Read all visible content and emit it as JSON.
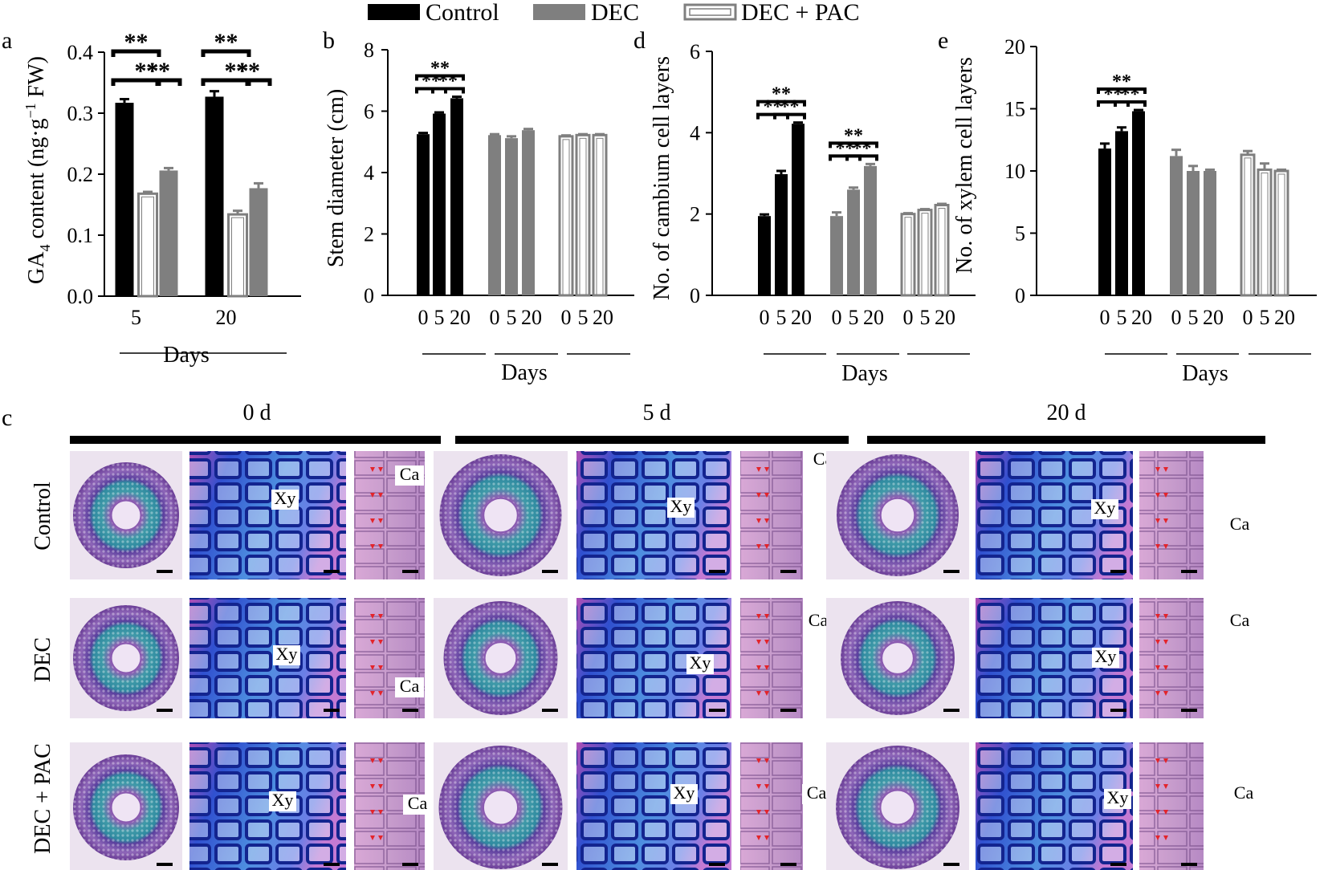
{
  "legend": [
    {
      "label": "Control",
      "color": "#000000",
      "style": "solid"
    },
    {
      "label": "DEC",
      "color": "#7f7f7f",
      "style": "solid"
    },
    {
      "label": "DEC + PAC",
      "color": "#ffffff",
      "style": "outline"
    }
  ],
  "panels": {
    "a": {
      "letter": "a",
      "ylabel_main": "GA",
      "ylabel_sub": "4",
      "ylabel_rest": " content (ng·g",
      "ylabel_sup": "−1",
      "ylabel_end": " FW)",
      "xlabel": "Days"
    },
    "b": {
      "letter": "b",
      "ylabel": "Stem diameter (cm)",
      "xlabel": "Days"
    },
    "d": {
      "letter": "d",
      "ylabel": "No. of cambium cell layers",
      "xlabel": "Days"
    },
    "e": {
      "letter": "e",
      "ylabel": "No. of xylem cell layers",
      "xlabel": "Days"
    },
    "c": {
      "letter": "c"
    }
  },
  "sig_label": "**",
  "chart_data": [
    {
      "panel": "a",
      "type": "bar",
      "categories": [
        "5",
        "20"
      ],
      "series": [
        {
          "name": "Control",
          "values": [
            0.317,
            0.327
          ],
          "errors": [
            0.006,
            0.009
          ]
        },
        {
          "name": "DEC",
          "values": [
            0.206,
            0.177
          ],
          "errors": [
            0.004,
            0.008
          ]
        },
        {
          "name": "DEC + PAC",
          "values": [
            0.168,
            0.134
          ],
          "errors": [
            0.003,
            0.006
          ]
        }
      ],
      "ylim": [
        0,
        0.4
      ],
      "yticks": [
        "0.0",
        "0.1",
        "0.2",
        "0.3",
        "0.4"
      ],
      "significance": [
        {
          "group": 0,
          "from": 0,
          "to": 1,
          "label": "**"
        },
        {
          "group": 0,
          "from": 1,
          "to": 2,
          "label": "**"
        },
        {
          "group": 0,
          "from": 0,
          "to": 2,
          "label": "**"
        },
        {
          "group": 1,
          "from": 0,
          "to": 1,
          "label": "**"
        },
        {
          "group": 1,
          "from": 1,
          "to": 2,
          "label": "**"
        },
        {
          "group": 1,
          "from": 0,
          "to": 2,
          "label": "**"
        }
      ]
    },
    {
      "panel": "b",
      "type": "bar",
      "groups": [
        {
          "name": "Control",
          "x": [
            "0",
            "5",
            "20"
          ],
          "values": [
            5.25,
            5.92,
            6.42
          ],
          "errors": [
            0.04,
            0.04,
            0.05
          ]
        },
        {
          "name": "DEC",
          "x": [
            "0",
            "5",
            "20"
          ],
          "values": [
            5.22,
            5.12,
            5.38
          ],
          "errors": [
            0.03,
            0.06,
            0.04
          ]
        },
        {
          "name": "DEC + PAC",
          "x": [
            "0",
            "5",
            "20"
          ],
          "values": [
            5.18,
            5.22,
            5.22
          ],
          "errors": [
            0.03,
            0.03,
            0.03
          ]
        }
      ],
      "ylim": [
        0,
        8
      ],
      "yticks": [
        "0",
        "2",
        "4",
        "6",
        "8"
      ],
      "significance": [
        {
          "group": 0,
          "from": 0,
          "to": 1,
          "label": "**"
        },
        {
          "group": 0,
          "from": 1,
          "to": 2,
          "label": "**"
        },
        {
          "group": 0,
          "from": 0,
          "to": 2,
          "label": "**"
        }
      ]
    },
    {
      "panel": "d",
      "type": "bar",
      "groups": [
        {
          "name": "Control",
          "x": [
            "0",
            "5",
            "20"
          ],
          "values": [
            1.95,
            2.98,
            4.22
          ],
          "errors": [
            0.04,
            0.08,
            0.03
          ]
        },
        {
          "name": "DEC",
          "x": [
            "0",
            "5",
            "20"
          ],
          "values": [
            1.95,
            2.6,
            3.18
          ],
          "errors": [
            0.09,
            0.05,
            0.05
          ]
        },
        {
          "name": "DEC + PAC",
          "x": [
            "0",
            "5",
            "20"
          ],
          "values": [
            2.0,
            2.1,
            2.22
          ],
          "errors": [
            0.02,
            0.02,
            0.03
          ]
        }
      ],
      "ylim": [
        0,
        6
      ],
      "yticks": [
        "0",
        "2",
        "4",
        "6"
      ],
      "significance": [
        {
          "group": 0,
          "from": 0,
          "to": 1,
          "label": "**"
        },
        {
          "group": 0,
          "from": 1,
          "to": 2,
          "label": "**"
        },
        {
          "group": 0,
          "from": 0,
          "to": 2,
          "label": "**"
        },
        {
          "group": 1,
          "from": 0,
          "to": 1,
          "label": "**"
        },
        {
          "group": 1,
          "from": 1,
          "to": 2,
          "label": "**"
        },
        {
          "group": 1,
          "from": 0,
          "to": 2,
          "label": "**"
        }
      ]
    },
    {
      "panel": "e",
      "type": "bar",
      "groups": [
        {
          "name": "Control",
          "x": [
            "0",
            "5",
            "20"
          ],
          "values": [
            11.8,
            13.2,
            14.8
          ],
          "errors": [
            0.4,
            0.3,
            0.1
          ]
        },
        {
          "name": "DEC",
          "x": [
            "0",
            "5",
            "20"
          ],
          "values": [
            11.2,
            10.0,
            10.0
          ],
          "errors": [
            0.5,
            0.4,
            0.1
          ]
        },
        {
          "name": "DEC + PAC",
          "x": [
            "0",
            "5",
            "20"
          ],
          "values": [
            11.3,
            10.1,
            10.0
          ],
          "errors": [
            0.3,
            0.5,
            0.1
          ]
        }
      ],
      "ylim": [
        0,
        20
      ],
      "yticks": [
        "0",
        "5",
        "10",
        "15",
        "20"
      ],
      "significance": [
        {
          "group": 0,
          "from": 0,
          "to": 1,
          "label": "**"
        },
        {
          "group": 0,
          "from": 1,
          "to": 2,
          "label": "**"
        },
        {
          "group": 0,
          "from": 0,
          "to": 2,
          "label": "**"
        }
      ]
    }
  ],
  "micrographs": {
    "columns": [
      "0 d",
      "5 d",
      "20 d"
    ],
    "rows": [
      "Control",
      "DEC",
      "DEC + PAC"
    ],
    "xylem_label": "Xy",
    "cambium_label": "Ca",
    "colors": {
      "purple": "#7a3fa6",
      "teal": "#3f9aa8",
      "blue": "#2d49cc",
      "pink": "#c98ccf",
      "dark": "#3a1f66"
    }
  }
}
